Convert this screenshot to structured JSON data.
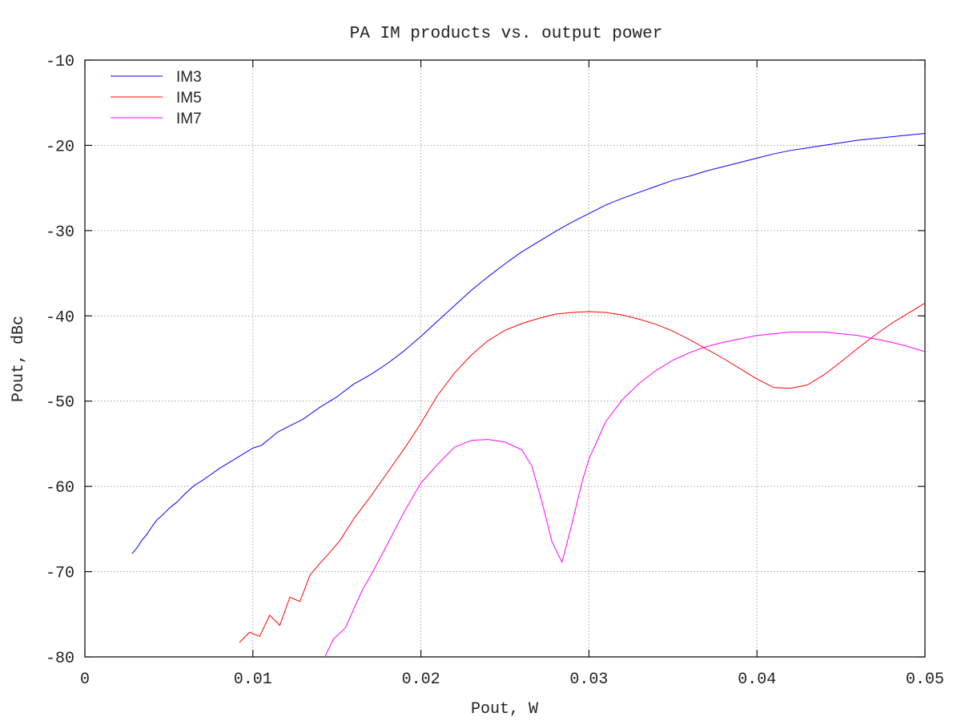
{
  "chart_data": {
    "type": "line",
    "title": "PA IM products vs. output power",
    "xlabel": "Pout, W",
    "ylabel": "Pout, dBc",
    "xlim": [
      0,
      0.05
    ],
    "ylim": [
      -80,
      -10
    ],
    "xticks": [
      0,
      0.01,
      0.02,
      0.03,
      0.04,
      0.05
    ],
    "xtick_labels": [
      "0",
      "0.01",
      "0.02",
      "0.03",
      "0.04",
      "0.05"
    ],
    "yticks": [
      -80,
      -70,
      -60,
      -50,
      -40,
      -30,
      -20,
      -10
    ],
    "ytick_labels": [
      "-80",
      "-70",
      "-60",
      "-50",
      "-40",
      "-30",
      "-20",
      "-10"
    ],
    "grid": true,
    "legend_position": "top-left",
    "series": [
      {
        "name": "IM3",
        "color": "#0000ff",
        "x": [
          0.0028,
          0.0031,
          0.0034,
          0.0037,
          0.004,
          0.0043,
          0.0046,
          0.005,
          0.0055,
          0.006,
          0.0065,
          0.007,
          0.0075,
          0.008,
          0.0085,
          0.009,
          0.0095,
          0.01,
          0.0105,
          0.011,
          0.0115,
          0.012,
          0.0125,
          0.013,
          0.0135,
          0.014,
          0.015,
          0.016,
          0.017,
          0.018,
          0.019,
          0.02,
          0.021,
          0.022,
          0.023,
          0.024,
          0.025,
          0.026,
          0.027,
          0.028,
          0.029,
          0.03,
          0.031,
          0.032,
          0.033,
          0.034,
          0.035,
          0.036,
          0.037,
          0.038,
          0.039,
          0.04,
          0.041,
          0.042,
          0.043,
          0.044,
          0.045,
          0.046,
          0.047,
          0.048,
          0.049,
          0.05
        ],
        "y": [
          -67.9,
          -67.2,
          -66.3,
          -65.6,
          -64.7,
          -63.9,
          -63.4,
          -62.6,
          -61.8,
          -60.8,
          -59.9,
          -59.3,
          -58.6,
          -57.9,
          -57.3,
          -56.7,
          -56.1,
          -55.5,
          -55.2,
          -54.4,
          -53.6,
          -53.1,
          -52.6,
          -52.1,
          -51.4,
          -50.7,
          -49.5,
          -48.0,
          -46.9,
          -45.6,
          -44.1,
          -42.4,
          -40.6,
          -38.8,
          -37.0,
          -35.4,
          -33.9,
          -32.5,
          -31.3,
          -30.1,
          -29.0,
          -28.0,
          -27.0,
          -26.2,
          -25.5,
          -24.8,
          -24.1,
          -23.6,
          -23.0,
          -22.5,
          -22.0,
          -21.5,
          -21.0,
          -20.6,
          -20.3,
          -20.0,
          -19.7,
          -19.4,
          -19.2,
          -19.0,
          -18.8,
          -18.6
        ]
      },
      {
        "name": "IM5",
        "color": "#ff0000",
        "x": [
          0.0092,
          0.0098,
          0.0104,
          0.011,
          0.0116,
          0.0122,
          0.0128,
          0.0134,
          0.014,
          0.0146,
          0.0152,
          0.016,
          0.017,
          0.018,
          0.019,
          0.02,
          0.021,
          0.022,
          0.023,
          0.024,
          0.025,
          0.026,
          0.027,
          0.028,
          0.029,
          0.03,
          0.031,
          0.032,
          0.033,
          0.034,
          0.035,
          0.036,
          0.037,
          0.038,
          0.039,
          0.04,
          0.041,
          0.042,
          0.043,
          0.044,
          0.045,
          0.046,
          0.047,
          0.048,
          0.049,
          0.05
        ],
        "y": [
          -78.3,
          -77.1,
          -77.6,
          -75.1,
          -76.3,
          -73.0,
          -73.5,
          -70.4,
          -69.0,
          -67.7,
          -66.3,
          -63.8,
          -61.2,
          -58.4,
          -55.6,
          -52.6,
          -49.3,
          -46.7,
          -44.6,
          -42.9,
          -41.7,
          -40.9,
          -40.3,
          -39.8,
          -39.6,
          -39.5,
          -39.6,
          -39.9,
          -40.4,
          -41.0,
          -41.8,
          -42.8,
          -43.9,
          -45.0,
          -46.2,
          -47.4,
          -48.4,
          -48.5,
          -48.1,
          -46.9,
          -45.4,
          -43.8,
          -42.3,
          -40.9,
          -39.7,
          -38.5
        ]
      },
      {
        "name": "IM7",
        "color": "#ff00ff",
        "x": [
          0.0143,
          0.0148,
          0.0155,
          0.016,
          0.0165,
          0.017,
          0.018,
          0.019,
          0.02,
          0.021,
          0.022,
          0.023,
          0.024,
          0.025,
          0.026,
          0.0266,
          0.0272,
          0.0278,
          0.0284,
          0.029,
          0.0296,
          0.03,
          0.031,
          0.032,
          0.033,
          0.034,
          0.035,
          0.036,
          0.037,
          0.038,
          0.039,
          0.04,
          0.041,
          0.042,
          0.043,
          0.044,
          0.045,
          0.046,
          0.047,
          0.048,
          0.049,
          0.05
        ],
        "y": [
          -79.9,
          -77.9,
          -76.6,
          -74.4,
          -72.2,
          -70.5,
          -66.8,
          -63.0,
          -59.6,
          -57.4,
          -55.4,
          -54.6,
          -54.5,
          -54.8,
          -55.7,
          -57.6,
          -61.8,
          -66.5,
          -68.9,
          -64.3,
          -59.4,
          -56.8,
          -52.4,
          -49.8,
          -47.9,
          -46.4,
          -45.2,
          -44.3,
          -43.6,
          -43.1,
          -42.7,
          -42.3,
          -42.1,
          -41.9,
          -41.9,
          -41.9,
          -42.1,
          -42.3,
          -42.7,
          -43.1,
          -43.6,
          -44.2
        ]
      }
    ]
  }
}
